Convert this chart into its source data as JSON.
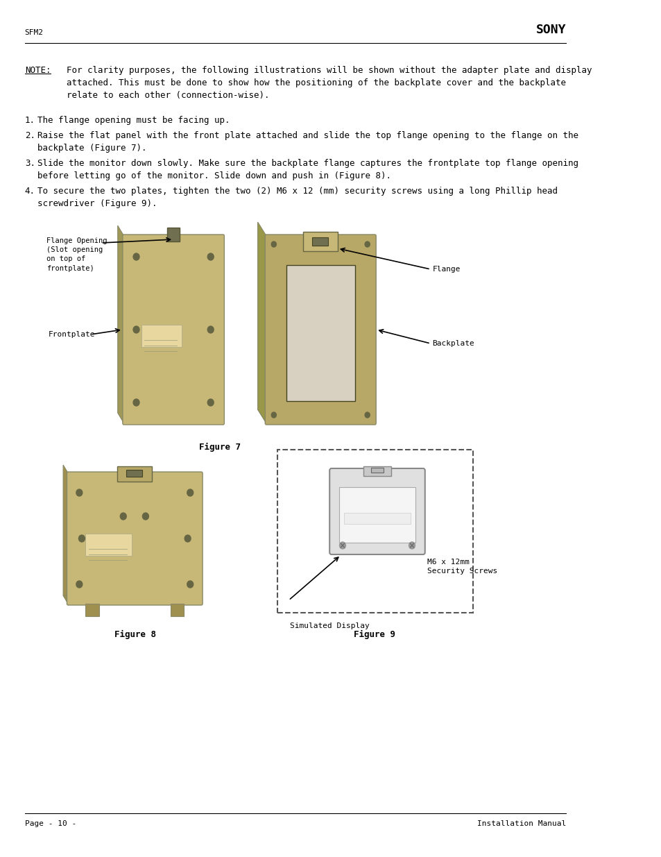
{
  "bg_color": "#ffffff",
  "header_left": "SFM2",
  "header_right": "SONY",
  "footer_left": "Page - 10 -",
  "footer_right": "Installation Manual",
  "note_label": "NOTE:",
  "note_text": "For clarity purposes, the following illustrations will be shown without the adapter plate and display\nattached. This must be done to show how the positioning of the backplate cover and the backplate\nrelate to each other (connection-wise).",
  "steps": [
    "The flange opening must be facing up.",
    "Raise the flat panel with the front plate attached and slide the top flange opening to the flange on the\nbackplate (Figure 7).",
    "Slide the monitor down slowly. Make sure the backplate flange captures the frontplate top flange opening\nbefore letting go of the monitor. Slide down and push in (Figure 8).",
    "To secure the two plates, tighten the two (2) M6 x 12 (mm) security screws using a long Phillip head\nscrewdriver (Figure 9)."
  ],
  "fig7_caption": "Figure 7",
  "fig8_caption": "Figure 8",
  "fig9_caption": "Figure 9",
  "label_flange_opening": "Flange Opening\n(Slot opening\non top of\nfrontplate)",
  "label_frontplate": "Frontplate",
  "label_flange": "Flange",
  "label_backplate": "Backplate",
  "label_m6": "M6 x 12mm\nSecurity Screws",
  "label_simulated": "Simulated Display",
  "font_family": "monospace",
  "text_color": "#000000",
  "line_color": "#000000"
}
